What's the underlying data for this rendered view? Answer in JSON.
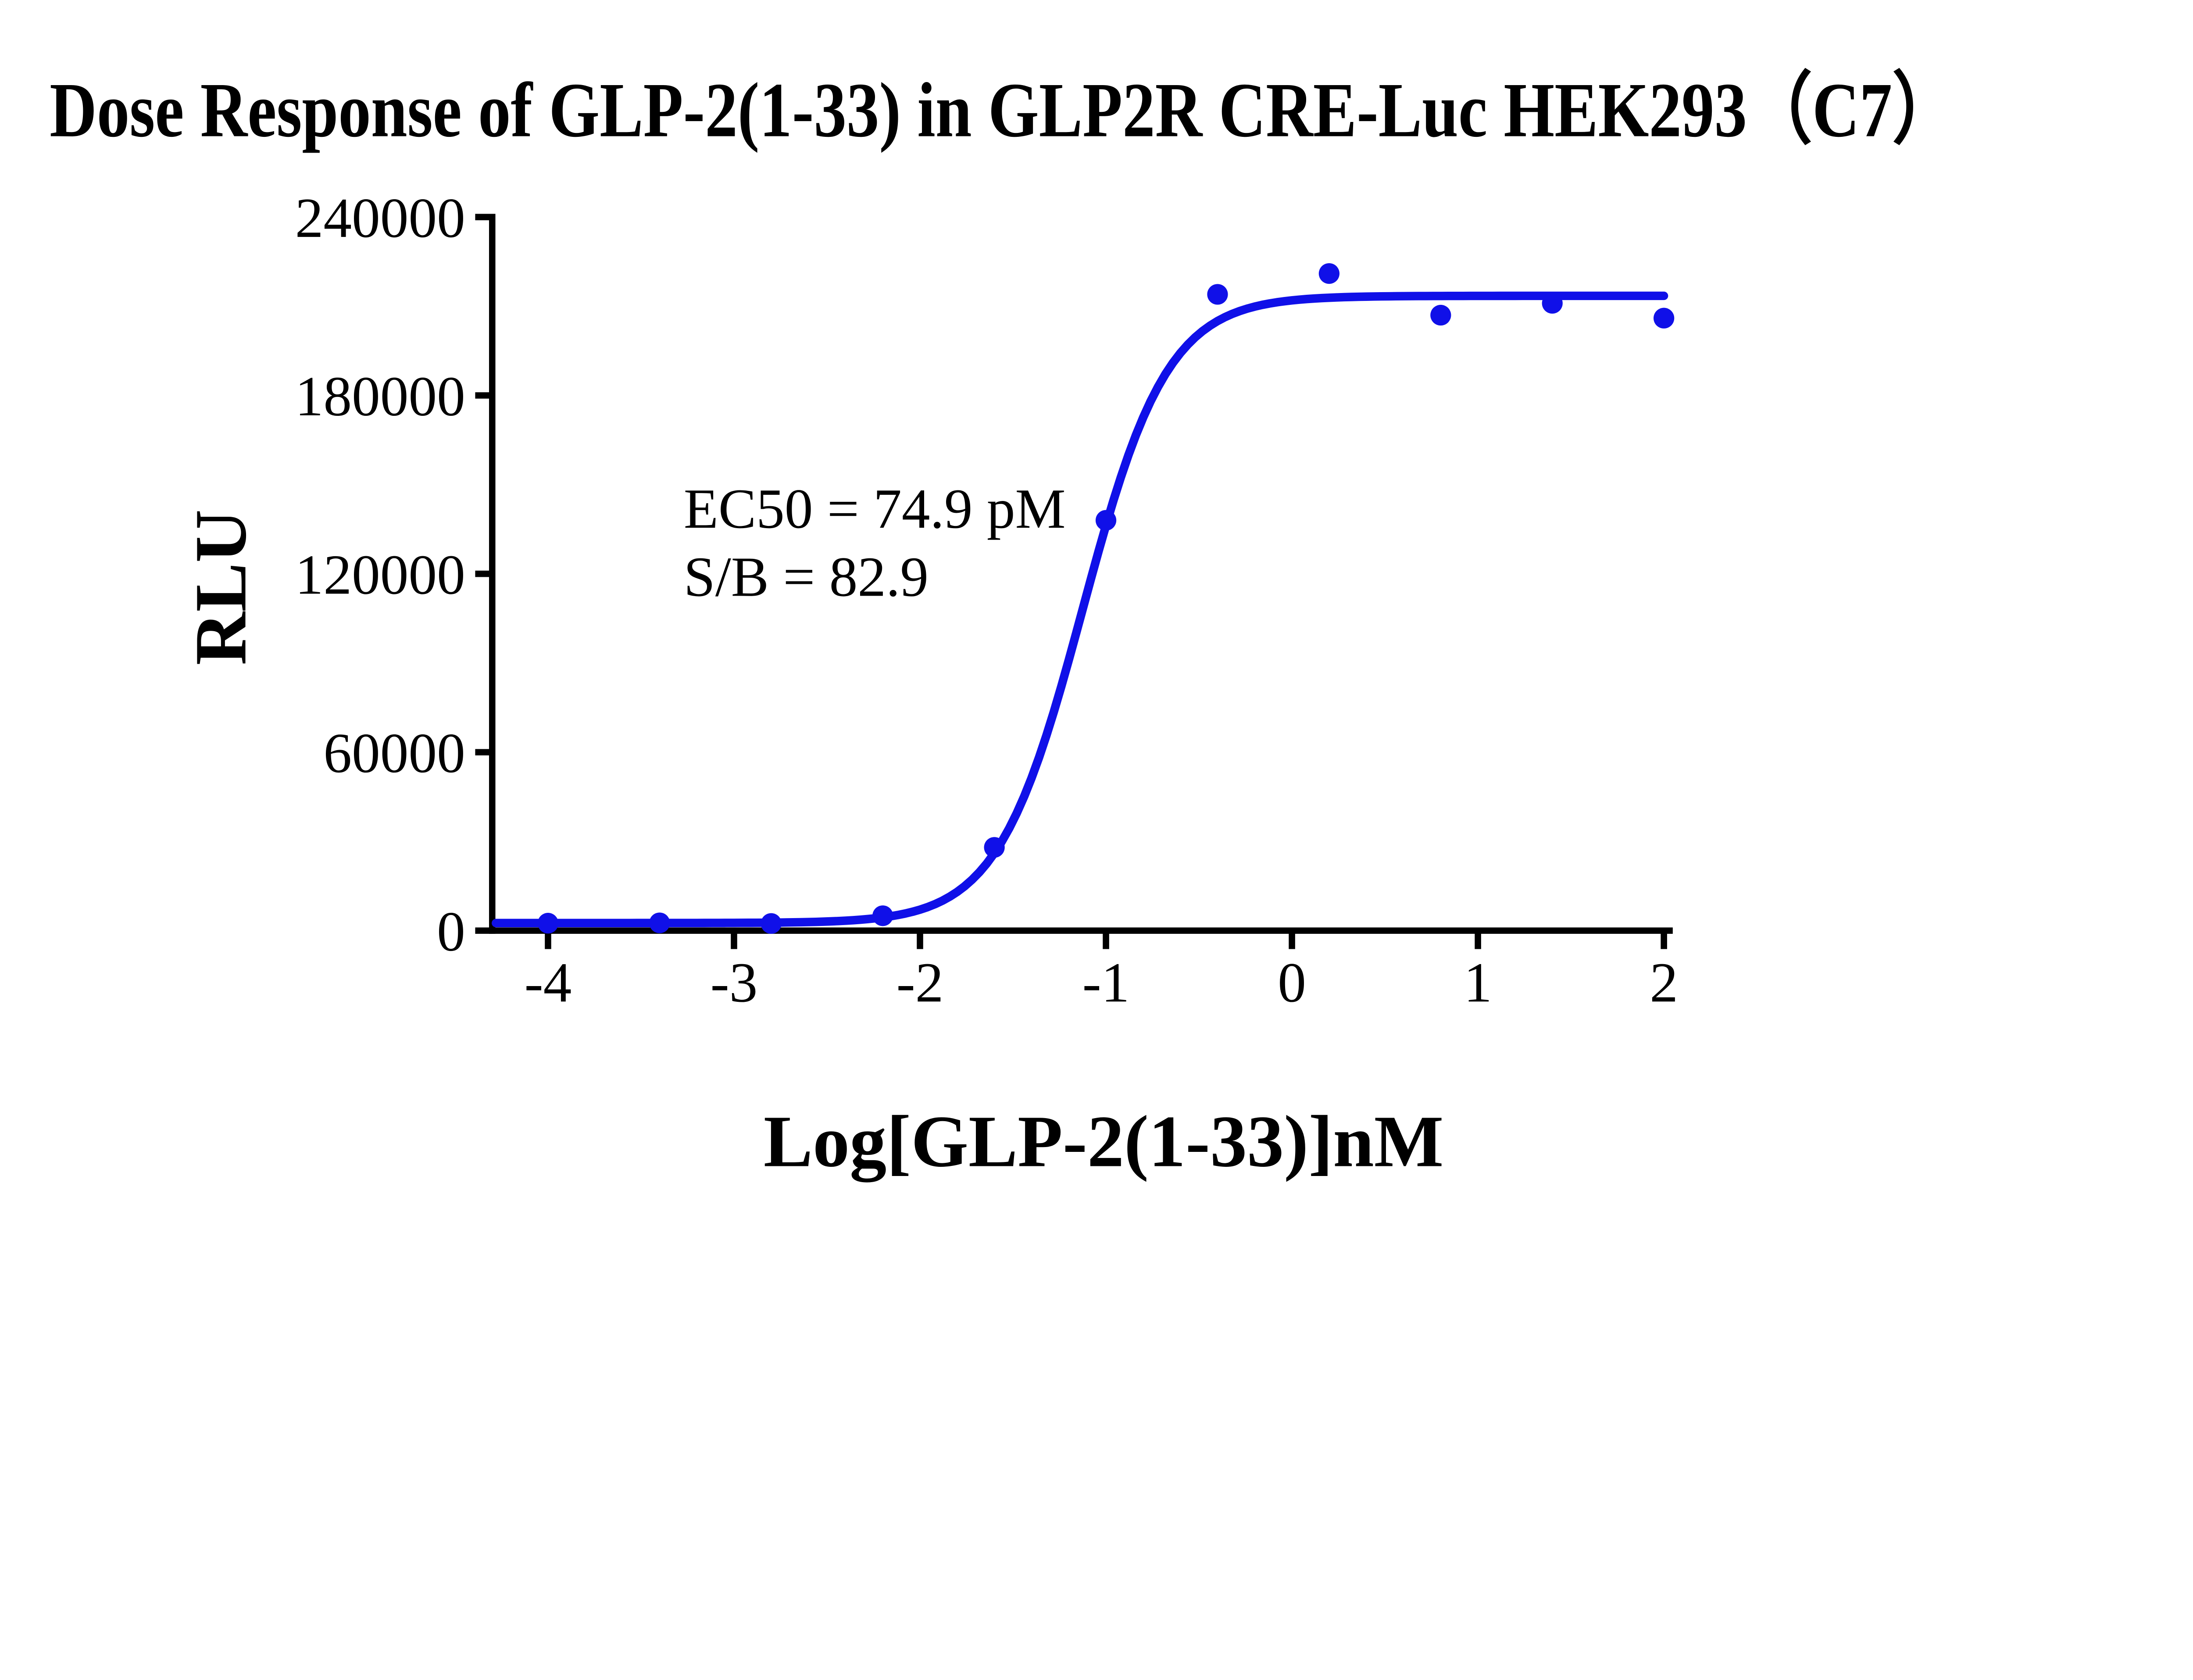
{
  "title": "Dose Response of GLP-2(1-33) in GLP2R CRE-Luc HEK293（C7）",
  "chart_data": {
    "type": "scatter",
    "title": "Dose Response of GLP-2(1-33) in GLP2R CRE-Luc HEK293（C7）",
    "xlabel": "Log[GLP-2(1-33)]nM",
    "ylabel": "RLU",
    "xlim": [
      -4.3,
      2.0
    ],
    "ylim": [
      0,
      240000
    ],
    "xticks": [
      -4,
      -3,
      -2,
      -1,
      0,
      1,
      2
    ],
    "yticks": [
      0,
      60000,
      120000,
      180000,
      240000
    ],
    "grid": false,
    "legend": "none",
    "points": {
      "log_conc_nM": [
        -4.0,
        -3.4,
        -2.8,
        -2.2,
        -1.6,
        -1.0,
        -0.4,
        0.2,
        0.8,
        1.4,
        2.0
      ],
      "rlu": [
        2500,
        2600,
        2400,
        5000,
        28000,
        138000,
        214000,
        221000,
        207000,
        211000,
        206000
      ]
    },
    "fit_curve": {
      "model": "4PL sigmoidal dose-response",
      "bottom": 2550,
      "top": 213500,
      "log_ec50": -1.1255,
      "hill_slope": 1.9
    },
    "annotation": {
      "line1": "EC50 = 74.9 pM",
      "line2": "S/B = 82.9"
    },
    "colors": {
      "series": "#1010e8",
      "axis": "#000000",
      "text": "#000000",
      "background": "#ffffff"
    }
  }
}
